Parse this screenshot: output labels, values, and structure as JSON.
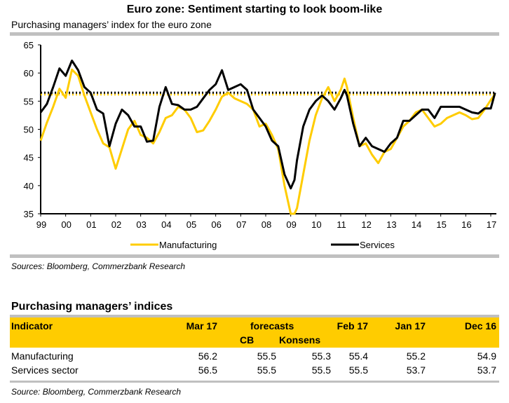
{
  "title": "Euro zone: Sentiment starting to look boom-like",
  "subtitle": "Purchasing managers’ index for the euro zone",
  "chart_source": "Sources: Bloomberg, Commerzbank Research",
  "chart_data": {
    "type": "line",
    "title": "Euro zone: Sentiment starting to look boom-like",
    "subtitle": "Purchasing managers’ index for the euro zone",
    "xlabel": "",
    "ylabel": "",
    "ylim": [
      35,
      65
    ],
    "yticks": [
      35,
      40,
      45,
      50,
      55,
      60,
      65
    ],
    "xlim": [
      1999,
      2017.25
    ],
    "xtick_labels": [
      "99",
      "00",
      "01",
      "02",
      "03",
      "04",
      "05",
      "06",
      "07",
      "08",
      "09",
      "10",
      "11",
      "12",
      "13",
      "14",
      "15",
      "16",
      "17"
    ],
    "legend": "bottom",
    "grid": false,
    "reference_lines": [
      {
        "series": "Manufacturing",
        "value": 56.2,
        "style": "dotted"
      },
      {
        "series": "Services",
        "value": 56.5,
        "style": "dotted"
      }
    ],
    "series": [
      {
        "name": "Manufacturing",
        "color": "#ffcc00",
        "x": [
          1999.0,
          1999.25,
          1999.5,
          1999.75,
          2000.0,
          2000.25,
          2000.5,
          2000.75,
          2001.0,
          2001.25,
          2001.5,
          2001.75,
          2002.0,
          2002.25,
          2002.5,
          2002.75,
          2003.0,
          2003.25,
          2003.5,
          2003.75,
          2004.0,
          2004.25,
          2004.5,
          2004.75,
          2005.0,
          2005.25,
          2005.5,
          2005.75,
          2006.0,
          2006.25,
          2006.5,
          2006.75,
          2007.0,
          2007.25,
          2007.5,
          2007.75,
          2008.0,
          2008.25,
          2008.5,
          2008.75,
          2009.0,
          2009.15,
          2009.25,
          2009.5,
          2009.75,
          2010.0,
          2010.25,
          2010.5,
          2010.75,
          2011.0,
          2011.15,
          2011.25,
          2011.5,
          2011.75,
          2012.0,
          2012.25,
          2012.5,
          2012.75,
          2013.0,
          2013.25,
          2013.5,
          2013.75,
          2014.0,
          2014.25,
          2014.5,
          2014.75,
          2015.0,
          2015.25,
          2015.5,
          2015.75,
          2016.0,
          2016.25,
          2016.5,
          2016.75,
          2017.0,
          2017.17
        ],
        "values": [
          48.0,
          51.2,
          54.0,
          57.2,
          55.6,
          60.6,
          59.5,
          56.0,
          53.0,
          50.0,
          47.5,
          46.8,
          43.0,
          46.5,
          50.0,
          51.5,
          49.0,
          48.5,
          47.5,
          49.5,
          52.0,
          52.5,
          54.0,
          53.5,
          52.0,
          49.5,
          49.8,
          51.5,
          53.5,
          55.8,
          56.5,
          55.5,
          55.0,
          54.5,
          53.5,
          50.5,
          51.0,
          49.0,
          46.5,
          40.0,
          35.0,
          34.5,
          36.0,
          42.0,
          48.0,
          52.5,
          55.5,
          57.5,
          55.0,
          57.0,
          59.0,
          57.5,
          52.0,
          47.0,
          47.5,
          45.5,
          44.0,
          46.0,
          46.5,
          48.5,
          50.5,
          51.5,
          53.0,
          53.5,
          52.0,
          50.5,
          51.0,
          52.0,
          52.5,
          53.0,
          52.5,
          51.8,
          52.0,
          53.5,
          55.2,
          56.2
        ]
      },
      {
        "name": "Services",
        "color": "#000000",
        "x": [
          1999.0,
          1999.25,
          1999.5,
          1999.75,
          2000.0,
          2000.25,
          2000.5,
          2000.75,
          2001.0,
          2001.25,
          2001.5,
          2001.75,
          2002.0,
          2002.25,
          2002.5,
          2002.75,
          2003.0,
          2003.25,
          2003.5,
          2003.75,
          2004.0,
          2004.25,
          2004.5,
          2004.75,
          2005.0,
          2005.25,
          2005.5,
          2005.75,
          2006.0,
          2006.25,
          2006.5,
          2006.75,
          2007.0,
          2007.25,
          2007.5,
          2007.75,
          2008.0,
          2008.25,
          2008.5,
          2008.75,
          2009.0,
          2009.15,
          2009.25,
          2009.5,
          2009.75,
          2010.0,
          2010.25,
          2010.5,
          2010.75,
          2011.0,
          2011.15,
          2011.25,
          2011.5,
          2011.75,
          2012.0,
          2012.25,
          2012.5,
          2012.75,
          2013.0,
          2013.25,
          2013.5,
          2013.75,
          2014.0,
          2014.25,
          2014.5,
          2014.75,
          2015.0,
          2015.25,
          2015.5,
          2015.75,
          2016.0,
          2016.25,
          2016.5,
          2016.75,
          2017.0,
          2017.17
        ],
        "values": [
          53.0,
          54.5,
          57.5,
          60.8,
          59.5,
          62.2,
          60.5,
          57.5,
          56.5,
          53.5,
          52.8,
          47.0,
          51.0,
          53.5,
          52.5,
          50.5,
          50.5,
          47.8,
          48.0,
          54.0,
          57.5,
          54.5,
          54.3,
          53.5,
          53.5,
          54.0,
          55.5,
          57.0,
          58.0,
          60.5,
          57.0,
          57.5,
          58.0,
          57.0,
          53.5,
          52.0,
          50.5,
          48.0,
          47.0,
          42.0,
          39.5,
          41.0,
          44.5,
          50.5,
          53.5,
          55.0,
          56.0,
          55.0,
          53.5,
          55.5,
          57.0,
          56.0,
          51.0,
          47.0,
          48.5,
          47.0,
          46.5,
          46.0,
          47.5,
          48.5,
          51.5,
          51.5,
          52.5,
          53.5,
          53.5,
          52.0,
          54.0,
          54.0,
          54.0,
          54.0,
          53.5,
          53.0,
          52.8,
          53.7,
          53.7,
          56.5
        ]
      }
    ]
  },
  "table": {
    "title": "Purchasing managers’ indices",
    "headers": {
      "indicator": "Indicator",
      "mar17": "Mar 17",
      "forecasts": "forecasts",
      "cb": "CB",
      "konsens": "Konsens",
      "feb17": "Feb 17",
      "jan17": "Jan 17",
      "dec16": "Dec 16"
    },
    "rows": [
      {
        "indicator": "Manufacturing",
        "mar17": "56.2",
        "cb": "55.5",
        "konsens": "55.3",
        "feb17": "55.4",
        "jan17": "55.2",
        "dec16": "54.9"
      },
      {
        "indicator": "Services sector",
        "mar17": "56.5",
        "cb": "55.5",
        "konsens": "55.5",
        "feb17": "55.5",
        "jan17": "53.7",
        "dec16": "53.7"
      }
    ],
    "source": "Source: Bloomberg, Commerzbank Research",
    "header_color": "#ffcc00"
  }
}
